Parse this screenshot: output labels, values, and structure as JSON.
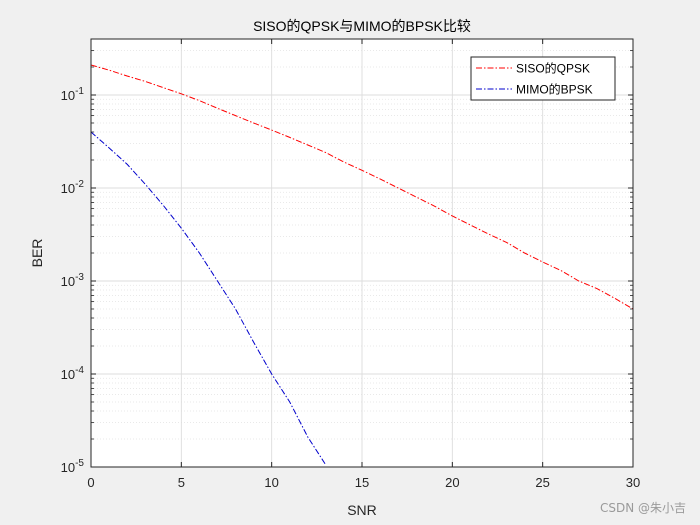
{
  "chart_data": {
    "type": "line",
    "title": "SISO的QPSK与MIMO的BPSK比较",
    "xlabel": "SNR",
    "ylabel": "BER",
    "xlim": [
      0,
      30
    ],
    "ylim": [
      1e-05,
      0.4
    ],
    "yscale": "log",
    "grid": true,
    "minor_grid": true,
    "legend_position": "top-right",
    "x_ticks": [
      0,
      5,
      10,
      15,
      20,
      25,
      30
    ],
    "y_ticks": [
      {
        "value": 1e-05,
        "base": "10",
        "exp": "-5"
      },
      {
        "value": 0.0001,
        "base": "10",
        "exp": "-4"
      },
      {
        "value": 0.001,
        "base": "10",
        "exp": "-3"
      },
      {
        "value": 0.01,
        "base": "10",
        "exp": "-2"
      },
      {
        "value": 0.1,
        "base": "10",
        "exp": "-1"
      }
    ],
    "series": [
      {
        "name": "SISO的QPSK",
        "color": "#ff0000",
        "dash": "dash-dot",
        "x": [
          0,
          1,
          2,
          3,
          4,
          5,
          6,
          7,
          8,
          9,
          10,
          11,
          12,
          13,
          14,
          15,
          16,
          17,
          18,
          19,
          20,
          21,
          22,
          23,
          24,
          25,
          26,
          27,
          28,
          29,
          30
        ],
        "y": [
          0.21,
          0.185,
          0.16,
          0.14,
          0.12,
          0.103,
          0.087,
          0.072,
          0.06,
          0.05,
          0.042,
          0.035,
          0.029,
          0.024,
          0.019,
          0.0155,
          0.0125,
          0.01,
          0.008,
          0.0064,
          0.005,
          0.004,
          0.0032,
          0.0026,
          0.002,
          0.0016,
          0.0013,
          0.001,
          0.00083,
          0.00065,
          0.0005
        ]
      },
      {
        "name": "MIMO的BPSK",
        "color": "#0000cc",
        "dash": "dash-dot",
        "x": [
          0,
          1,
          2,
          3,
          4,
          5,
          6,
          7,
          8,
          9,
          10,
          11,
          12,
          13
        ],
        "y": [
          0.04,
          0.027,
          0.018,
          0.011,
          0.0065,
          0.0037,
          0.002,
          0.001,
          0.0005,
          0.00022,
          0.0001,
          5e-05,
          2.1e-05,
          1.05e-05
        ]
      }
    ]
  },
  "watermark": "CSDN @朱小吉"
}
